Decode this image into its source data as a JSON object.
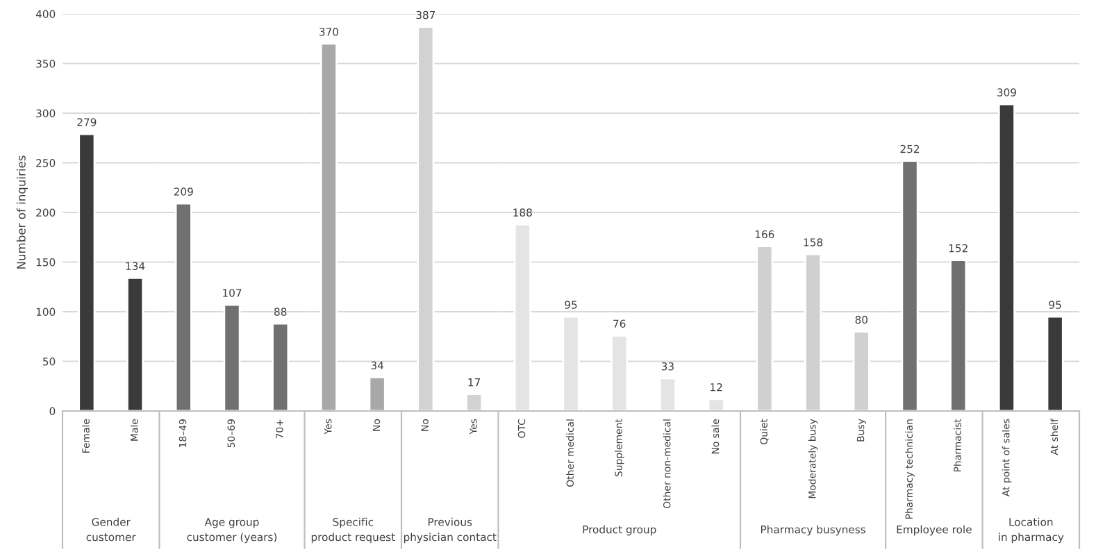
{
  "chart_data": [
    {
      "type": "bar",
      "ylabel": "Number of inquiries",
      "xlabel": "Gender customer",
      "categories": [
        "Female",
        "Male"
      ],
      "values": [
        279,
        134
      ],
      "colors": [
        "#3a3a3a",
        "#3a3a3a"
      ],
      "ylim": [
        0,
        400
      ],
      "yticks": [
        0,
        50,
        100,
        150,
        200,
        250,
        300,
        350,
        400
      ],
      "grid": "y",
      "data_labels": true
    },
    {
      "type": "bar",
      "xlabel": "Age group customer (years)",
      "categories": [
        "18–49",
        "50–69",
        "70+"
      ],
      "values": [
        209,
        107,
        88
      ],
      "colors": [
        "#707070",
        "#707070",
        "#707070"
      ],
      "ylim": [
        0,
        400
      ],
      "yticks": [
        0,
        50,
        100,
        150,
        200,
        250,
        300,
        350,
        400
      ],
      "grid": "y",
      "data_labels": true,
      "tick_labels": "x"
    },
    {
      "type": "bar",
      "xlabel": "Specific product request",
      "categories": [
        "Yes",
        "No"
      ],
      "values": [
        370,
        34
      ],
      "colors": [
        "#a8a8a8",
        "#a8a8a8"
      ],
      "ylim": [
        0,
        400
      ],
      "yticks": [
        0,
        50,
        100,
        150,
        200,
        250,
        300,
        350,
        400
      ],
      "grid": "y",
      "data_labels": true,
      "tick_labels": "x"
    },
    {
      "type": "bar",
      "xlabel": "Previous physician contact",
      "categories": [
        "No",
        "Yes"
      ],
      "values": [
        387,
        17
      ],
      "colors": [
        "#d2d2d2",
        "#d2d2d2"
      ],
      "ylim": [
        0,
        400
      ],
      "yticks": [
        0,
        50,
        100,
        150,
        200,
        250,
        300,
        350,
        400
      ],
      "grid": "y",
      "data_labels": true,
      "tick_labels": "x"
    },
    {
      "type": "bar",
      "xlabel": "Product group",
      "categories": [
        "OTC",
        "Other medical",
        "Supplement",
        "Other non-medical",
        "No sale"
      ],
      "values": [
        188,
        95,
        76,
        33,
        12
      ],
      "colors": [
        "#e4e4e4",
        "#e4e4e4",
        "#e4e4e4",
        "#e4e4e4",
        "#e4e4e4"
      ],
      "ylim": [
        0,
        400
      ],
      "yticks": [
        0,
        50,
        100,
        150,
        200,
        250,
        300,
        350,
        400
      ],
      "grid": "y",
      "data_labels": true,
      "tick_labels": "x"
    },
    {
      "type": "bar",
      "xlabel": "Pharmacy busyness",
      "categories": [
        "Quiet",
        "Moderately busy",
        "Busy"
      ],
      "values": [
        166,
        158,
        80
      ],
      "colors": [
        "#d0d0d0",
        "#d0d0d0",
        "#d0d0d0"
      ],
      "ylim": [
        0,
        400
      ],
      "yticks": [
        0,
        50,
        100,
        150,
        200,
        250,
        300,
        350,
        400
      ],
      "grid": "y",
      "data_labels": true,
      "tick_labels": "x"
    },
    {
      "type": "bar",
      "xlabel": "Employee role",
      "categories": [
        "Pharmacy technician",
        "Pharmacist"
      ],
      "values": [
        252,
        152
      ],
      "colors": [
        "#707070",
        "#707070"
      ],
      "ylim": [
        0,
        400
      ],
      "yticks": [
        0,
        50,
        100,
        150,
        200,
        250,
        300,
        350,
        400
      ],
      "grid": "y",
      "data_labels": true,
      "tick_labels": "x"
    },
    {
      "type": "bar",
      "xlabel": "Location in pharmacy",
      "categories": [
        "At point of sales",
        "At shelf"
      ],
      "values": [
        309,
        95
      ],
      "colors": [
        "#3a3a3a",
        "#3a3a3a"
      ],
      "ylim": [
        0,
        400
      ],
      "yticks": [
        0,
        50,
        100,
        150,
        200,
        250,
        300,
        350,
        400
      ],
      "grid": "y",
      "data_labels": true,
      "tick_labels": "x"
    }
  ]
}
